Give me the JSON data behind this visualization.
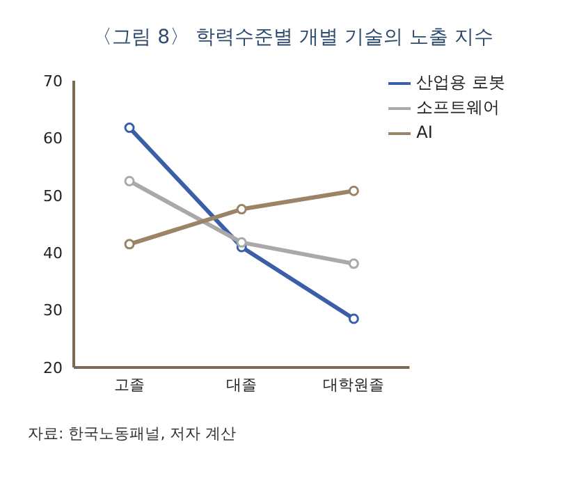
{
  "chart_data": {
    "type": "line",
    "title": "〈그림 8〉 학력수준별 개별 기술의 노출 지수",
    "categories": [
      "고졸",
      "대졸",
      "대학원졸"
    ],
    "series": [
      {
        "name": "산업용 로봇",
        "color": "#3a5fa8",
        "values": [
          61.8,
          41.0,
          28.5
        ]
      },
      {
        "name": "소프트웨어",
        "color": "#a9a9a9",
        "values": [
          52.5,
          41.8,
          38.1
        ]
      },
      {
        "name": "AI",
        "color": "#9b8466",
        "values": [
          41.5,
          47.6,
          50.8
        ]
      }
    ],
    "ylim": [
      20,
      70
    ],
    "yticks": [
      20,
      30,
      40,
      50,
      60,
      70
    ],
    "grid": false,
    "legend": "top right",
    "marker": "circle",
    "line_style": "solid",
    "annotations": [
      "자료: 한국노동패널, 저자 계산"
    ]
  }
}
